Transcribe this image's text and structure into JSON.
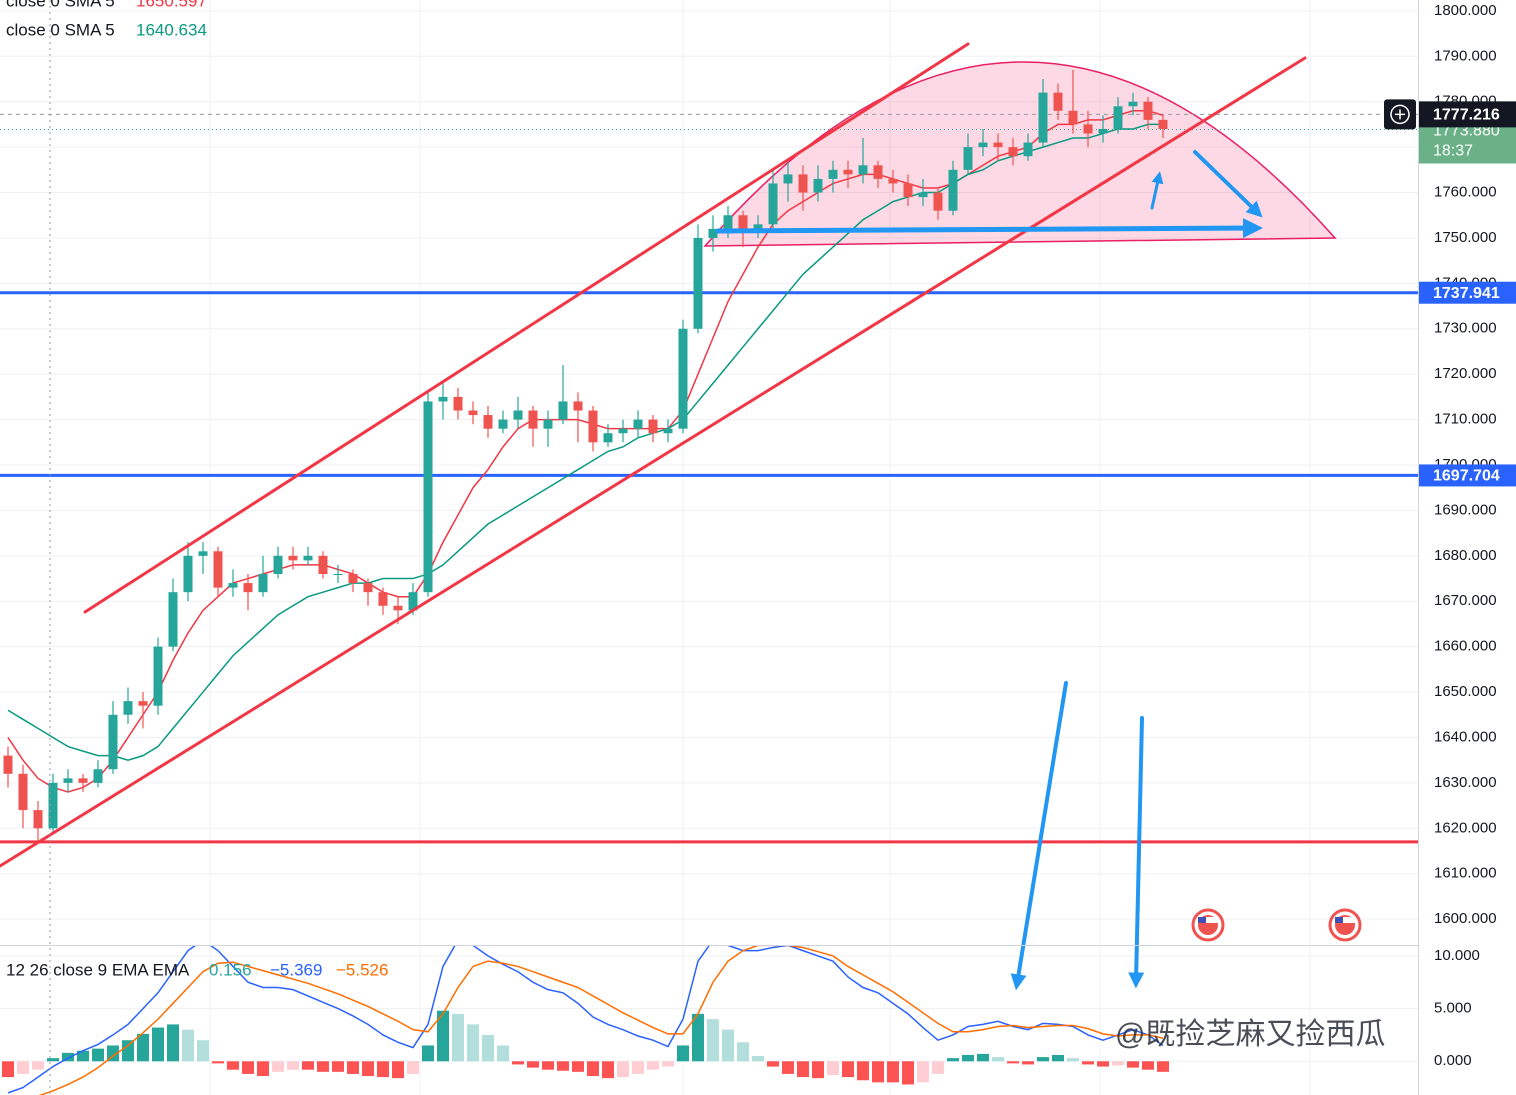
{
  "chart_data": {
    "type": "candlestick",
    "ylim": [
      1594.3,
      1802.4
    ],
    "yticks": [
      {
        "value": 1600,
        "label": "1600.000"
      },
      {
        "value": 1610,
        "label": "1610.000"
      },
      {
        "value": 1620,
        "label": "1620.000"
      },
      {
        "value": 1630,
        "label": "1630.000"
      },
      {
        "value": 1640,
        "label": "1640.000"
      },
      {
        "value": 1650,
        "label": "1650.000"
      },
      {
        "value": 1660,
        "label": "1660.000"
      },
      {
        "value": 1670,
        "label": "1670.000"
      },
      {
        "value": 1680,
        "label": "1680.000"
      },
      {
        "value": 1690,
        "label": "1690.000"
      },
      {
        "value": 1700,
        "label": "1700.000"
      },
      {
        "value": 1710,
        "label": "1710.000"
      },
      {
        "value": 1720,
        "label": "1720.000"
      },
      {
        "value": 1730,
        "label": "1730.000"
      },
      {
        "value": 1740,
        "label": "1740.000"
      },
      {
        "value": 1750,
        "label": "1750.000"
      },
      {
        "value": 1760,
        "label": "1760.000"
      },
      {
        "value": 1770,
        "label": "1770.000"
      },
      {
        "value": 1780,
        "label": "1780.000"
      },
      {
        "value": 1790,
        "label": "1790.000"
      },
      {
        "value": 1800,
        "label": "1800.000"
      }
    ],
    "grid": true,
    "up_color": "#26a69a",
    "down_color": "#ef5350",
    "open": [
      1636,
      1632,
      1624,
      1620,
      1630,
      1631,
      1630,
      1633,
      1645,
      1648,
      1647,
      1660,
      1672,
      1680,
      1681,
      1673,
      1674,
      1672,
      1676,
      1680,
      1679,
      1680,
      1676,
      1676,
      1674,
      1672,
      1669,
      1668,
      1672,
      1714,
      1715,
      1712,
      1711,
      1708,
      1710,
      1712,
      1708,
      1710,
      1714,
      1712,
      1705,
      1707,
      1708,
      1710,
      1707,
      1708,
      1730,
      1750,
      1752,
      1755,
      1752,
      1753,
      1762,
      1764,
      1760,
      1763,
      1765,
      1764,
      1766,
      1763,
      1762,
      1759,
      1760,
      1756,
      1765,
      1770,
      1771,
      1770,
      1768,
      1771,
      1782,
      1778,
      1775,
      1773,
      1774,
      1779,
      1780,
      1776
    ],
    "high": [
      1638,
      1634,
      1626,
      1632,
      1633,
      1632,
      1635,
      1648,
      1651,
      1650,
      1662,
      1675,
      1683,
      1683,
      1682,
      1677,
      1676,
      1680,
      1682,
      1682,
      1682,
      1681,
      1678,
      1677,
      1675,
      1673,
      1671,
      1674,
      1716,
      1718,
      1717,
      1714,
      1713,
      1712,
      1715,
      1713,
      1712,
      1722,
      1716,
      1713,
      1709,
      1710,
      1712,
      1711,
      1710,
      1732,
      1753,
      1755,
      1757,
      1756,
      1755,
      1765,
      1767,
      1766,
      1766,
      1767,
      1767,
      1772,
      1767,
      1765,
      1764,
      1763,
      1761,
      1767,
      1773,
      1774,
      1773,
      1772,
      1773,
      1785,
      1784,
      1787,
      1778,
      1777,
      1781,
      1782,
      1781,
      1777
    ],
    "low": [
      1629,
      1620,
      1617,
      1619,
      1628,
      1628,
      1629,
      1632,
      1643,
      1642,
      1645,
      1659,
      1670,
      1676,
      1671,
      1671,
      1668,
      1671,
      1675,
      1677,
      1678,
      1675,
      1674,
      1672,
      1669,
      1667,
      1665,
      1667,
      1671,
      1710,
      1710,
      1709,
      1706,
      1707,
      1708,
      1704,
      1704,
      1709,
      1705,
      1703,
      1704,
      1705,
      1706,
      1705,
      1705,
      1707,
      1729,
      1747,
      1750,
      1748,
      1750,
      1752,
      1758,
      1756,
      1758,
      1760,
      1761,
      1762,
      1761,
      1760,
      1757,
      1757,
      1754,
      1755,
      1764,
      1768,
      1767,
      1766,
      1767,
      1770,
      1776,
      1773,
      1770,
      1771,
      1773,
      1777,
      1774,
      1772
    ],
    "close": [
      1632,
      1624,
      1620,
      1630,
      1631,
      1630,
      1633,
      1645,
      1648,
      1647,
      1660,
      1672,
      1680,
      1681,
      1673,
      1674,
      1672,
      1676,
      1680,
      1679,
      1680,
      1676,
      1676,
      1674,
      1672,
      1669,
      1668,
      1672,
      1714,
      1715,
      1712,
      1711,
      1708,
      1710,
      1712,
      1708,
      1710,
      1714,
      1712,
      1705,
      1707,
      1708,
      1710,
      1707,
      1708,
      1730,
      1750,
      1752,
      1755,
      1752,
      1753,
      1762,
      1764,
      1760,
      1763,
      1765,
      1764,
      1766,
      1763,
      1762,
      1759,
      1760,
      1756,
      1765,
      1770,
      1771,
      1770,
      1768,
      1771,
      1782,
      1778,
      1775,
      1773,
      1774,
      1779,
      1780,
      1776,
      1774
    ],
    "series": [
      {
        "name": "close 0 SMA 5",
        "legend_value": 1650.597,
        "color": "#f23645",
        "values": [
          1640,
          1635,
          1631,
          1629,
          1628,
          1629,
          1631,
          1635,
          1640,
          1645,
          1650,
          1657,
          1663,
          1668,
          1671,
          1674,
          1675,
          1676,
          1677,
          1678,
          1678,
          1678,
          1677,
          1676,
          1674,
          1672,
          1671,
          1671,
          1676,
          1683,
          1689,
          1695,
          1699,
          1704,
          1708,
          1710,
          1710,
          1710,
          1710,
          1709,
          1708,
          1708,
          1708,
          1708,
          1708,
          1712,
          1720,
          1728,
          1736,
          1742,
          1748,
          1753,
          1756,
          1758,
          1760,
          1762,
          1763,
          1764,
          1764,
          1763,
          1762,
          1761,
          1761,
          1762,
          1764,
          1766,
          1768,
          1769,
          1770,
          1773,
          1775,
          1775,
          1776,
          1776,
          1777,
          1778,
          1778,
          1777
        ]
      },
      {
        "name": "close 0 SMA 5",
        "legend_value": 1640.634,
        "color": "#089981",
        "values": [
          1646,
          1644,
          1642,
          1640,
          1638,
          1637,
          1636,
          1636,
          1635,
          1636,
          1638,
          1642,
          1646,
          1650,
          1654,
          1658,
          1661,
          1664,
          1667,
          1669,
          1671,
          1672,
          1673,
          1674,
          1674,
          1675,
          1675,
          1675,
          1676,
          1678,
          1681,
          1684,
          1687,
          1689,
          1691,
          1693,
          1695,
          1697,
          1699,
          1701,
          1703,
          1704,
          1706,
          1707,
          1708,
          1710,
          1714,
          1718,
          1722,
          1726,
          1730,
          1734,
          1738,
          1742,
          1745,
          1748,
          1751,
          1754,
          1756,
          1758,
          1759,
          1760,
          1760,
          1762,
          1764,
          1765,
          1767,
          1768,
          1769,
          1770,
          1771,
          1772,
          1772,
          1773,
          1774,
          1774,
          1775,
          1775
        ]
      }
    ],
    "levels": [
      {
        "value": 1737.941,
        "color": "#2962ff",
        "tag": true
      },
      {
        "value": 1697.704,
        "color": "#2962ff",
        "tag": true
      },
      {
        "value": 1617,
        "color": "#f23645",
        "tag": false
      }
    ],
    "crosshair_price": 1777.216,
    "last_price": {
      "value": 1773.88,
      "label": "1773.880"
    },
    "countdown": "18:37",
    "watermark": "@既捡芝麻又捡西瓜",
    "macd": {
      "name": "12 26 close 9 EMA EMA",
      "legend_values": [
        0.156,
        -5.369,
        -5.526
      ],
      "legend_labels": [
        "0.156",
        "−5.369",
        "−5.526"
      ],
      "ylim": [
        -3.2,
        10.94
      ],
      "yticks": [
        {
          "value": 0,
          "label": "0.000"
        },
        {
          "value": 5,
          "label": "5.000"
        },
        {
          "value": 10,
          "label": "10.000"
        }
      ],
      "histogram": [
        -1.5,
        -1.2,
        -0.8,
        0.3,
        0.8,
        1,
        1.2,
        1.5,
        2,
        2.6,
        3.2,
        3.5,
        3,
        2,
        -0.2,
        -0.8,
        -1.2,
        -1.4,
        -1,
        -0.8,
        -0.8,
        -1,
        -1,
        -1.2,
        -1.4,
        -1.5,
        -1.6,
        -1.2,
        1.5,
        4.8,
        4.5,
        3.5,
        2.5,
        1.5,
        -0.3,
        -0.6,
        -0.8,
        -0.9,
        -1,
        -1.4,
        -1.6,
        -1.5,
        -1.2,
        -0.8,
        -0.5,
        1.5,
        4.5,
        4,
        3,
        1.8,
        0.5,
        -0.5,
        -1.2,
        -1.5,
        -1.6,
        -1.3,
        -1.5,
        -1.8,
        -2,
        -2,
        -2.2,
        -2,
        -1.2,
        0.3,
        0.6,
        0.7,
        0.4,
        -0.2,
        -0.3,
        0.4,
        0.6,
        0.3,
        -0.3,
        -0.5,
        -0.4,
        -0.6,
        -0.8,
        -1
      ],
      "macd": [
        -3,
        -2.5,
        -1.5,
        -0.5,
        0.3,
        1,
        1.6,
        2.5,
        3.5,
        5,
        6.5,
        8.5,
        10.5,
        11.5,
        10.5,
        9,
        7.5,
        7,
        7,
        6.8,
        6.2,
        5.6,
        5,
        4.3,
        3.5,
        2.5,
        1.8,
        1.3,
        3.5,
        9,
        11.5,
        11,
        10,
        9.2,
        8.5,
        7.5,
        6.8,
        6.5,
        5.5,
        4.2,
        3.5,
        3,
        2.4,
        2,
        1.4,
        4,
        9.5,
        11.5,
        11,
        10.5,
        10.5,
        10.8,
        11,
        10.5,
        10,
        9.5,
        8,
        7,
        6.5,
        5.5,
        4.5,
        3.2,
        2,
        2.5,
        3.3,
        3.5,
        3.8,
        3.3,
        3,
        3.6,
        3.5,
        3.3,
        2.5,
        2,
        2.5,
        3,
        2.5,
        1.5
      ],
      "signal": [
        -4,
        -3.7,
        -3.3,
        -2.8,
        -2.2,
        -1.5,
        -0.6,
        0.5,
        1.5,
        2.7,
        4,
        5.5,
        7,
        8.5,
        9.3,
        9.4,
        9,
        8.6,
        8.2,
        7.8,
        7.4,
        6.9,
        6.4,
        5.8,
        5.2,
        4.5,
        3.8,
        3,
        2.8,
        4.5,
        7,
        9,
        9.5,
        9.3,
        9,
        8.5,
        8,
        7.5,
        7,
        6.2,
        5.4,
        4.6,
        3.9,
        3.2,
        2.6,
        2.6,
        4.5,
        7.5,
        9.5,
        10.5,
        11,
        11,
        11,
        10.8,
        10.4,
        10,
        9,
        8.2,
        7.4,
        6.6,
        5.6,
        4.6,
        3.6,
        2.8,
        2.8,
        3,
        3.3,
        3.4,
        3.2,
        3.3,
        3.4,
        3.4,
        3.1,
        2.6,
        2.4,
        2.5,
        2.5,
        2.2
      ],
      "macd_color": "#2962ff",
      "signal_color": "#ff6d00",
      "hist_colors": [
        "#26a69a",
        "#b2dfdb",
        "#ff5252",
        "#ffcdd2"
      ]
    }
  }
}
